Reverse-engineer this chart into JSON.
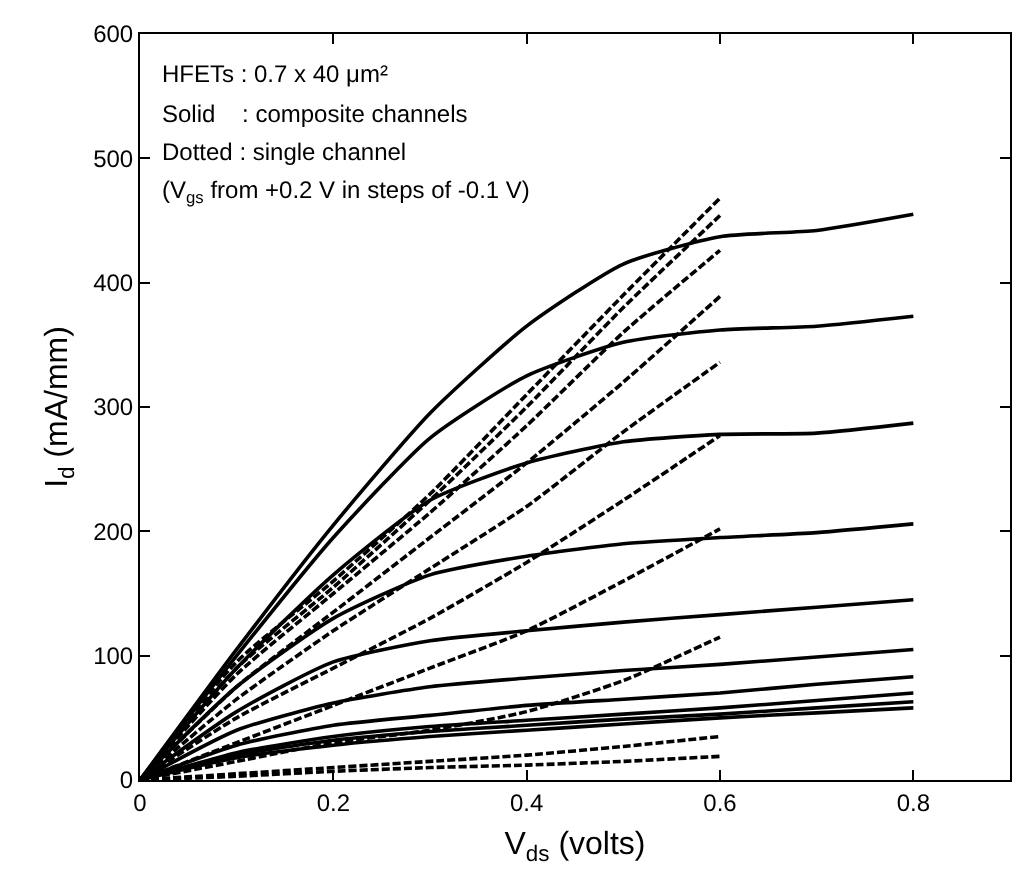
{
  "chart_data": {
    "type": "line",
    "xlabel": "V$_{ds}$ (volts)",
    "ylabel": "I$_{d}$ (mA/mm)",
    "annotations": [
      "HFETs : 0.7 x 40 μm²",
      "Solid    : composite channels",
      "Dotted : single channel",
      "(V$_{gs}$ from +0.2 V in steps of -0.1 V)"
    ],
    "xlim": [
      0,
      0.9
    ],
    "xticks": [
      0,
      0.2,
      0.4,
      0.6,
      0.8
    ],
    "ylim": [
      0,
      600
    ],
    "yticks": [
      0,
      100,
      200,
      300,
      400,
      500,
      600
    ],
    "series": [
      {
        "color": "#000000",
        "line_style": "solid",
        "x": [
          0,
          0.1,
          0.2,
          0.3,
          0.4,
          0.5,
          0.6,
          0.7,
          0.8
        ],
        "values": [
          0,
          105,
          205,
          295,
          365,
          415,
          437,
          442,
          455
        ]
      },
      {
        "color": "#000000",
        "line_style": "solid",
        "x": [
          0,
          0.1,
          0.2,
          0.3,
          0.4,
          0.5,
          0.6,
          0.7,
          0.8
        ],
        "values": [
          0,
          100,
          195,
          275,
          325,
          352,
          362,
          365,
          373
        ]
      },
      {
        "color": "#000000",
        "line_style": "solid",
        "x": [
          0,
          0.1,
          0.2,
          0.3,
          0.4,
          0.5,
          0.6,
          0.7,
          0.8
        ],
        "values": [
          0,
          90,
          165,
          225,
          255,
          272,
          278,
          279,
          287
        ]
      },
      {
        "color": "#000000",
        "line_style": "solid",
        "x": [
          0,
          0.1,
          0.2,
          0.3,
          0.4,
          0.5,
          0.6,
          0.7,
          0.8
        ],
        "values": [
          0,
          75,
          130,
          165,
          180,
          190,
          195,
          199,
          206
        ]
      },
      {
        "color": "#000000",
        "line_style": "solid",
        "x": [
          0,
          0.1,
          0.2,
          0.3,
          0.4,
          0.5,
          0.6,
          0.7,
          0.8
        ],
        "values": [
          0,
          55,
          95,
          112,
          120,
          127,
          133,
          139,
          145
        ]
      },
      {
        "color": "#000000",
        "line_style": "solid",
        "x": [
          0,
          0.1,
          0.2,
          0.3,
          0.4,
          0.5,
          0.6,
          0.7,
          0.8
        ],
        "values": [
          0,
          40,
          62,
          75,
          82,
          88,
          93,
          99,
          105
        ]
      },
      {
        "color": "#000000",
        "line_style": "solid",
        "x": [
          0,
          0.1,
          0.2,
          0.3,
          0.4,
          0.5,
          0.6,
          0.7,
          0.8
        ],
        "values": [
          0,
          28,
          44,
          52,
          60,
          65,
          70,
          77,
          83
        ]
      },
      {
        "color": "#000000",
        "line_style": "solid",
        "x": [
          0,
          0.1,
          0.2,
          0.3,
          0.4,
          0.5,
          0.6,
          0.7,
          0.8
        ],
        "values": [
          0,
          22,
          35,
          43,
          48,
          53,
          58,
          64,
          70
        ]
      },
      {
        "color": "#000000",
        "line_style": "solid",
        "x": [
          0,
          0.1,
          0.2,
          0.3,
          0.4,
          0.5,
          0.6,
          0.7,
          0.8
        ],
        "values": [
          0,
          20,
          32,
          39,
          44,
          49,
          53,
          58,
          63
        ]
      },
      {
        "color": "#000000",
        "line_style": "solid",
        "x": [
          0,
          0.1,
          0.2,
          0.3,
          0.4,
          0.5,
          0.6,
          0.7,
          0.8
        ],
        "values": [
          0,
          18,
          28,
          35,
          40,
          45,
          50,
          54,
          58
        ]
      },
      {
        "color": "#000000",
        "line_style": "dashed",
        "x": [
          0,
          0.1,
          0.2,
          0.3,
          0.4,
          0.5,
          0.6
        ],
        "values": [
          0,
          95,
          160,
          230,
          310,
          390,
          468
        ]
      },
      {
        "color": "#000000",
        "line_style": "dashed",
        "x": [
          0,
          0.1,
          0.2,
          0.3,
          0.4,
          0.5,
          0.6
        ],
        "values": [
          0,
          90,
          155,
          225,
          300,
          380,
          454
        ]
      },
      {
        "color": "#000000",
        "line_style": "dashed",
        "x": [
          0,
          0.1,
          0.2,
          0.3,
          0.4,
          0.5,
          0.6
        ],
        "values": [
          0,
          85,
          150,
          215,
          285,
          360,
          426
        ]
      },
      {
        "color": "#000000",
        "line_style": "dashed",
        "x": [
          0,
          0.1,
          0.2,
          0.3,
          0.4,
          0.5,
          0.6
        ],
        "values": [
          0,
          75,
          135,
          195,
          255,
          320,
          389
        ]
      },
      {
        "color": "#000000",
        "line_style": "dashed",
        "x": [
          0,
          0.1,
          0.2,
          0.3,
          0.4,
          0.5,
          0.6
        ],
        "values": [
          0,
          65,
          120,
          170,
          220,
          280,
          336
        ]
      },
      {
        "color": "#000000",
        "line_style": "dashed",
        "x": [
          0,
          0.1,
          0.2,
          0.3,
          0.4,
          0.5,
          0.6
        ],
        "values": [
          0,
          50,
          90,
          130,
          175,
          225,
          277
        ]
      },
      {
        "color": "#000000",
        "line_style": "dashed",
        "x": [
          0,
          0.1,
          0.2,
          0.3,
          0.4,
          0.5,
          0.6
        ],
        "values": [
          0,
          30,
          60,
          90,
          120,
          160,
          202
        ]
      },
      {
        "color": "#000000",
        "line_style": "dashed",
        "x": [
          0,
          0.1,
          0.2,
          0.3,
          0.4,
          0.5,
          0.6
        ],
        "values": [
          0,
          15,
          30,
          40,
          55,
          80,
          115
        ]
      },
      {
        "color": "#000000",
        "line_style": "dashed",
        "x": [
          0,
          0.1,
          0.2,
          0.3,
          0.4,
          0.5,
          0.6
        ],
        "values": [
          0,
          5,
          10,
          15,
          20,
          27,
          35
        ]
      },
      {
        "color": "#000000",
        "line_style": "dashed",
        "x": [
          0,
          0.1,
          0.2,
          0.3,
          0.4,
          0.5,
          0.6
        ],
        "values": [
          0,
          3,
          7,
          10,
          12,
          15,
          19
        ]
      }
    ]
  }
}
